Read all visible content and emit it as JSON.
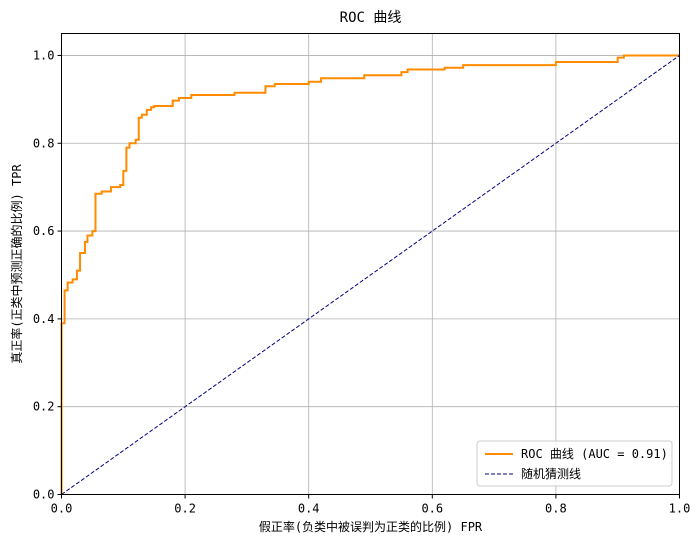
{
  "chart_data": {
    "type": "line",
    "title": "ROC 曲线",
    "xlabel": "假正率(负类中被误判为正类的比例) FPR",
    "ylabel": "真正率(正类中预测正确的比例) TPR",
    "xlim": [
      0,
      1
    ],
    "ylim": [
      0,
      1.05
    ],
    "xticks": [
      0.0,
      0.2,
      0.4,
      0.6,
      0.8,
      1.0
    ],
    "xtick_labels": [
      "0.0",
      "0.2",
      "0.4",
      "0.6",
      "0.8",
      "1.0"
    ],
    "yticks": [
      0.0,
      0.2,
      0.4,
      0.6,
      0.8,
      1.0
    ],
    "ytick_labels": [
      "0.0",
      "0.2",
      "0.4",
      "0.6",
      "0.8",
      "1.0"
    ],
    "grid": true,
    "legend_position": "lower-right",
    "series": [
      {
        "name": "ROC 曲线 (AUC = 0.91)",
        "color": "#ff8c00",
        "style": "solid",
        "x": [
          0,
          0,
          0.005,
          0.005,
          0.01,
          0.01,
          0.018,
          0.018,
          0.025,
          0.025,
          0.03,
          0.03,
          0.038,
          0.038,
          0.042,
          0.042,
          0.05,
          0.05,
          0.055,
          0.055,
          0.065,
          0.065,
          0.08,
          0.08,
          0.095,
          0.095,
          0.1,
          0.1,
          0.105,
          0.105,
          0.11,
          0.11,
          0.12,
          0.12,
          0.125,
          0.125,
          0.13,
          0.13,
          0.138,
          0.138,
          0.145,
          0.145,
          0.15,
          0.15,
          0.18,
          0.18,
          0.19,
          0.19,
          0.21,
          0.21,
          0.28,
          0.28,
          0.33,
          0.33,
          0.345,
          0.345,
          0.4,
          0.4,
          0.42,
          0.42,
          0.49,
          0.49,
          0.55,
          0.55,
          0.56,
          0.56,
          0.62,
          0.62,
          0.65,
          0.65,
          0.8,
          0.8,
          0.9,
          0.9,
          0.91,
          0.91,
          1.0
        ],
        "y": [
          0,
          0.39,
          0.39,
          0.465,
          0.465,
          0.483,
          0.483,
          0.49,
          0.49,
          0.51,
          0.51,
          0.55,
          0.55,
          0.575,
          0.575,
          0.59,
          0.59,
          0.6,
          0.6,
          0.685,
          0.685,
          0.69,
          0.69,
          0.7,
          0.7,
          0.705,
          0.705,
          0.737,
          0.737,
          0.79,
          0.79,
          0.8,
          0.8,
          0.808,
          0.808,
          0.858,
          0.858,
          0.865,
          0.865,
          0.876,
          0.876,
          0.882,
          0.882,
          0.885,
          0.885,
          0.897,
          0.897,
          0.903,
          0.903,
          0.91,
          0.91,
          0.915,
          0.915,
          0.93,
          0.93,
          0.935,
          0.935,
          0.94,
          0.94,
          0.948,
          0.948,
          0.955,
          0.955,
          0.962,
          0.962,
          0.968,
          0.968,
          0.972,
          0.972,
          0.978,
          0.978,
          0.985,
          0.985,
          0.995,
          0.995,
          1.0,
          1.0
        ]
      },
      {
        "name": "随机猜测线",
        "color": "#000080",
        "style": "dashed",
        "x": [
          0,
          1
        ],
        "y": [
          0,
          1
        ]
      }
    ]
  }
}
